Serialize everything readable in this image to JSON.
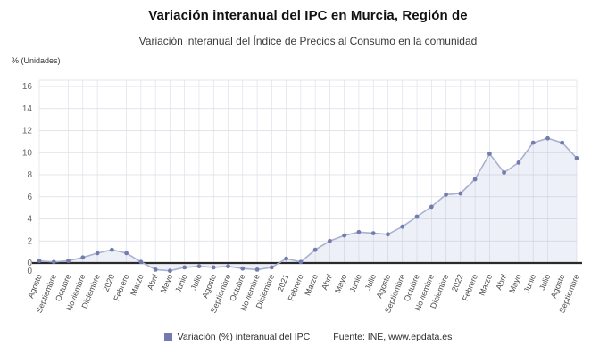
{
  "header": {
    "title": "Variación interanual del IPC en Murcia, Región de",
    "subtitle": "Variación interanual del Índice de Precios al Consumo en la comunidad"
  },
  "chart": {
    "y_ticks": [
      16,
      14,
      12,
      10,
      8,
      6,
      4,
      2,
      0
    ],
    "baseline_label": "0"
  },
  "chart_data": {
    "type": "line",
    "title": "Variación interanual del IPC en Murcia, Región de",
    "subtitle": "Variación interanual del Índice de Precios al Consumo en la comunidad",
    "xlabel": "",
    "ylabel": "% (Unidades)",
    "ylim": [
      -1.2,
      16.6
    ],
    "grid": true,
    "point_markers": true,
    "legend_position": "bottom",
    "categories": [
      "Agosto",
      "Septiembre",
      "Octubre",
      "Noviembre",
      "Diciembre",
      "2020",
      "Febrero",
      "Marzo",
      "Abril",
      "Mayo",
      "Junio",
      "Julio",
      "Agosto",
      "Septiembre",
      "Octubre",
      "Noviembre",
      "Diciembre",
      "2021",
      "Febrero",
      "Marzo",
      "Abril",
      "Mayo",
      "Junio",
      "Julio",
      "Agosto",
      "Septiembre",
      "Octubre",
      "Noviembre",
      "Diciembre",
      "2022",
      "Febrero",
      "Marzo",
      "Abril",
      "Mayo",
      "Junio",
      "Julio",
      "Agosto",
      "Septiembre"
    ],
    "series": [
      {
        "name": "Variación (%) interanual del IPC",
        "values": [
          0.2,
          0.1,
          0.2,
          0.5,
          0.9,
          1.2,
          0.9,
          0.1,
          -0.6,
          -0.7,
          -0.4,
          -0.3,
          -0.4,
          -0.3,
          -0.5,
          -0.6,
          -0.4,
          0.4,
          0.1,
          1.2,
          2.0,
          2.5,
          2.8,
          2.7,
          2.6,
          3.3,
          4.2,
          5.1,
          6.2,
          6.3,
          7.6,
          9.9,
          8.2,
          9.1,
          10.9,
          11.3,
          10.9,
          9.5
        ]
      }
    ]
  },
  "footer": {
    "source": "Fuente: INE, www.epdata.es"
  },
  "colors": {
    "line": "#a9b0d2",
    "marker": "#737cae",
    "area_fill": "rgba(150,160,205,0.16)",
    "grid": "#dadce5",
    "zero_line": "#2a2a2a",
    "axis_text": "#666666",
    "x_axis_text": "#4a4a4a",
    "title": "#111111",
    "subtitle": "#3a3a3a"
  }
}
